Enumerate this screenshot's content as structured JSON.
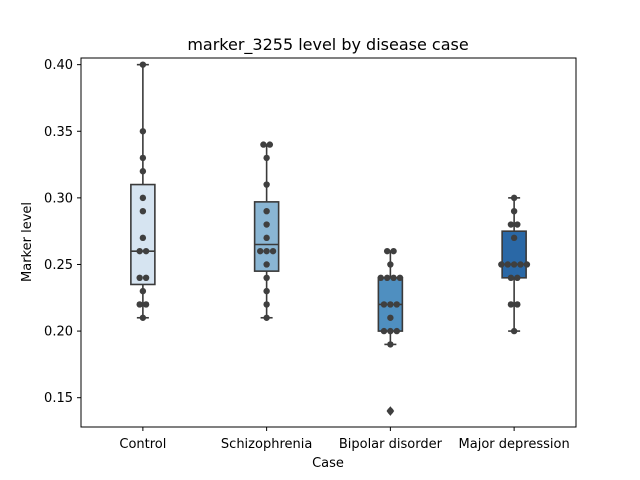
{
  "chart_data": {
    "type": "box",
    "title": "marker_3255 level by disease case",
    "xlabel": "Case",
    "ylabel": "Marker level",
    "ylim": [
      0.128,
      0.405
    ],
    "yticks": [
      0.15,
      0.2,
      0.25,
      0.3,
      0.35,
      0.4
    ],
    "ytick_labels": [
      "0.15",
      "0.20",
      "0.25",
      "0.30",
      "0.35",
      "0.40"
    ],
    "categories": [
      "Control",
      "Schizophrenia",
      "Bipolar disorder",
      "Major depression"
    ],
    "colors": [
      "#d6e4f1",
      "#8ab6d4",
      "#4f8fc0",
      "#2a68a6"
    ],
    "grid": false,
    "boxes": [
      {
        "category": "Control",
        "q1": 0.235,
        "median": 0.26,
        "q3": 0.31,
        "whisker_low": 0.21,
        "whisker_high": 0.4,
        "outliers": []
      },
      {
        "category": "Schizophrenia",
        "q1": 0.245,
        "median": 0.265,
        "q3": 0.297,
        "whisker_low": 0.21,
        "whisker_high": 0.34,
        "outliers": []
      },
      {
        "category": "Bipolar disorder",
        "q1": 0.2,
        "median": 0.22,
        "q3": 0.24,
        "whisker_low": 0.19,
        "whisker_high": 0.26,
        "outliers": [
          0.14
        ]
      },
      {
        "category": "Major depression",
        "q1": 0.24,
        "median": 0.25,
        "q3": 0.275,
        "whisker_low": 0.2,
        "whisker_high": 0.3,
        "outliers": []
      }
    ],
    "points": [
      [
        0.4,
        0.35,
        0.33,
        0.32,
        0.3,
        0.29,
        0.27,
        0.26,
        0.26,
        0.24,
        0.24,
        0.23,
        0.22,
        0.22,
        0.21
      ],
      [
        0.34,
        0.34,
        0.33,
        0.31,
        0.29,
        0.28,
        0.27,
        0.26,
        0.26,
        0.26,
        0.25,
        0.24,
        0.23,
        0.22,
        0.21
      ],
      [
        0.26,
        0.26,
        0.25,
        0.24,
        0.24,
        0.24,
        0.24,
        0.22,
        0.22,
        0.22,
        0.21,
        0.2,
        0.2,
        0.2,
        0.19,
        0.14
      ],
      [
        0.3,
        0.29,
        0.28,
        0.28,
        0.27,
        0.25,
        0.25,
        0.25,
        0.25,
        0.25,
        0.24,
        0.24,
        0.22,
        0.22,
        0.2
      ]
    ]
  }
}
